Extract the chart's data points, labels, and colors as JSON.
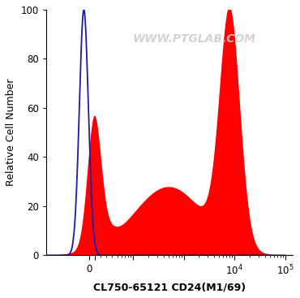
{
  "xlabel": "CL750-65121 CD24(M1/69)",
  "ylabel": "Relative Cell Number",
  "watermark": "WWW.PTGLAB.COM",
  "ylim": [
    0,
    100
  ],
  "red_color": "#ff0000",
  "blue_color": "#1a1aaa",
  "background_color": "#ffffff",
  "label_fontsize": 9,
  "tick_fontsize": 8.5,
  "watermark_fontsize": 10
}
